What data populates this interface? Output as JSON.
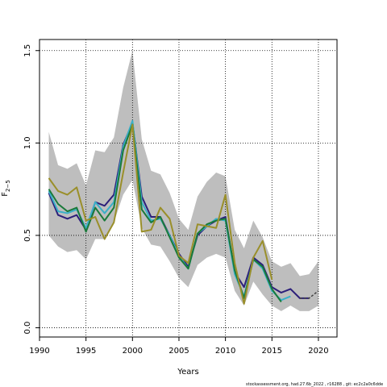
{
  "chart_data": {
    "type": "line",
    "xlabel": "Years",
    "ylabel_main": "F",
    "ylabel_sub": "2−5",
    "xlim": [
      1990,
      2022
    ],
    "ylim": [
      -0.05,
      1.56
    ],
    "x_ticks": [
      1990,
      1995,
      2000,
      2005,
      2010,
      2015,
      2020
    ],
    "y_ticks": [
      0.0,
      0.5,
      1.0,
      1.5
    ],
    "y_tick_labels": [
      "0.0",
      "0.5",
      "1.0",
      "1.5"
    ],
    "grid": "dotted",
    "band": {
      "color": "#bebebe",
      "x": [
        1991,
        1992,
        1993,
        1994,
        1995,
        1996,
        1997,
        1998,
        1999,
        2000,
        2001,
        2002,
        2003,
        2004,
        2005,
        2006,
        2007,
        2008,
        2009,
        2010,
        2011,
        2012,
        2013,
        2014,
        2015,
        2016,
        2017,
        2018,
        2019,
        2020
      ],
      "upper": [
        1.06,
        0.88,
        0.86,
        0.89,
        0.77,
        0.96,
        0.95,
        1.03,
        1.3,
        1.5,
        1.02,
        0.85,
        0.83,
        0.73,
        0.59,
        0.53,
        0.71,
        0.79,
        0.84,
        0.82,
        0.53,
        0.43,
        0.58,
        0.49,
        0.36,
        0.33,
        0.35,
        0.28,
        0.29,
        0.36
      ],
      "lower": [
        0.5,
        0.44,
        0.41,
        0.42,
        0.37,
        0.48,
        0.48,
        0.57,
        0.72,
        0.8,
        0.54,
        0.45,
        0.44,
        0.36,
        0.27,
        0.22,
        0.34,
        0.38,
        0.4,
        0.38,
        0.2,
        0.12,
        0.25,
        0.18,
        0.12,
        0.09,
        0.12,
        0.09,
        0.09,
        0.12
      ]
    },
    "series": [
      {
        "color": "#2c1f7a",
        "x": [
          1991,
          1992,
          1993,
          1994,
          1995,
          1996,
          1997,
          1998,
          1999,
          2000,
          2001,
          2002,
          2003,
          2004,
          2005,
          2006,
          2007,
          2008,
          2009,
          2010,
          2011,
          2012,
          2013,
          2014,
          2015,
          2016,
          2017,
          2018,
          2019
        ],
        "values": [
          0.73,
          0.61,
          0.59,
          0.61,
          0.53,
          0.68,
          0.66,
          0.72,
          0.99,
          1.11,
          0.71,
          0.6,
          0.6,
          0.5,
          0.4,
          0.33,
          0.5,
          0.55,
          0.58,
          0.6,
          0.3,
          0.22,
          0.38,
          0.34,
          0.22,
          0.19,
          0.21,
          0.16,
          0.16
        ]
      },
      {
        "color": "#3ab0c8",
        "x": [
          1991,
          1992,
          1993,
          1994,
          1995,
          1996,
          1997,
          1998,
          1999,
          2000,
          2001,
          2002,
          2003,
          2004,
          2005,
          2006,
          2007,
          2008,
          2009,
          2010,
          2011,
          2012,
          2013,
          2014,
          2015,
          2016,
          2017
        ],
        "values": [
          0.74,
          0.63,
          0.62,
          0.64,
          0.54,
          0.68,
          0.62,
          0.68,
          0.98,
          1.12,
          0.68,
          0.58,
          0.59,
          0.5,
          0.39,
          0.32,
          0.51,
          0.55,
          0.59,
          0.58,
          0.29,
          0.17,
          0.37,
          0.32,
          0.2,
          0.15,
          0.17
        ]
      },
      {
        "color": "#1a7a3a",
        "x": [
          1991,
          1992,
          1993,
          1994,
          1995,
          1996,
          1997,
          1998,
          1999,
          2000,
          2001,
          2002,
          2003,
          2004,
          2005,
          2006,
          2007,
          2008,
          2009,
          2010,
          2011,
          2012,
          2013,
          2014,
          2015,
          2016
        ],
        "values": [
          0.75,
          0.67,
          0.63,
          0.65,
          0.52,
          0.65,
          0.58,
          0.65,
          0.96,
          1.1,
          0.64,
          0.57,
          0.6,
          0.49,
          0.38,
          0.32,
          0.51,
          0.56,
          0.58,
          0.59,
          0.31,
          0.16,
          0.37,
          0.33,
          0.21,
          0.14
        ]
      },
      {
        "color": "#9a8f2a",
        "x": [
          1991,
          1992,
          1993,
          1994,
          1995,
          1996,
          1997,
          1998,
          1999,
          2000,
          2001,
          2002,
          2003,
          2004,
          2005,
          2006,
          2007,
          2008,
          2009,
          2010,
          2011,
          2012,
          2013,
          2014,
          2015
        ],
        "values": [
          0.81,
          0.74,
          0.72,
          0.76,
          0.58,
          0.6,
          0.48,
          0.57,
          0.84,
          1.1,
          0.52,
          0.53,
          0.65,
          0.59,
          0.39,
          0.35,
          0.56,
          0.55,
          0.54,
          0.72,
          0.35,
          0.13,
          0.38,
          0.47,
          0.26
        ]
      },
      {
        "color": "#404040",
        "dash": "3,2",
        "x": [
          2018,
          2019,
          2020
        ],
        "values": [
          0.16,
          0.16,
          0.2
        ]
      }
    ]
  },
  "footer": "stockassessment.org,  had.27.6b_2022 , r16288 ,  git: ec2c2a0c6dde"
}
